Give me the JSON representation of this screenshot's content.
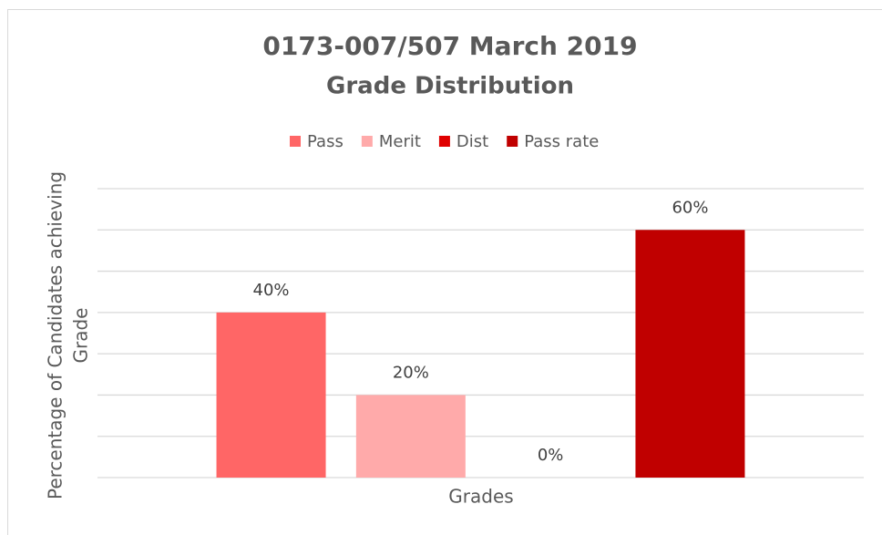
{
  "chart_data": {
    "type": "bar",
    "title": [
      "0173-007/507 March 2019",
      "Grade Distribution"
    ],
    "xlabel": "Grades",
    "ylabel": [
      "Percentage of Candidates achieving",
      "Grade"
    ],
    "categories": [
      null
    ],
    "series": [
      {
        "name": "Pass",
        "color": "#ff6666",
        "values": [
          40
        ],
        "value_labels": [
          "40%"
        ]
      },
      {
        "name": "Merit",
        "color": "#ffaaaa",
        "values": [
          20
        ],
        "value_labels": [
          "20%"
        ]
      },
      {
        "name": "Dist",
        "color": "#e00000",
        "values": [
          0
        ],
        "value_labels": [
          "0%"
        ]
      },
      {
        "name": "Pass rate",
        "color": "#c00000",
        "values": [
          60
        ],
        "value_labels": [
          "60%"
        ]
      }
    ],
    "ylim": [
      0,
      70
    ],
    "yticks": [
      0,
      10,
      20,
      30,
      40,
      50,
      60,
      70
    ],
    "ytick_labels": false,
    "grid": true,
    "legend": "top"
  }
}
